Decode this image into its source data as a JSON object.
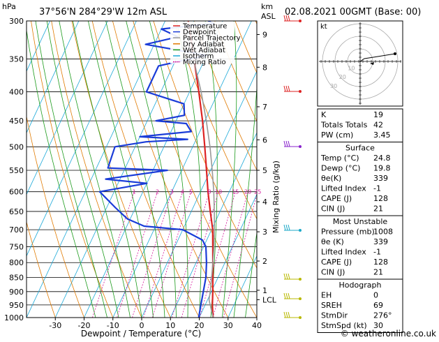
{
  "header": {
    "location": "37°56'N  284°29'W  12m  ASL",
    "datetime": "02.08.2021  00GMT  (Base: 00)"
  },
  "chart_data": {
    "type": "line",
    "title": "37°56'N  284°29'W  12m  ASL",
    "xlabel": "Dewpoint / Temperature (°C)",
    "ylabel": "hPa",
    "right_axis_label": "Mixing Ratio (g/kg)",
    "km_label": "km",
    "asl_label": "ASL",
    "pressure_ticks": [
      300,
      350,
      400,
      450,
      500,
      550,
      600,
      650,
      700,
      750,
      800,
      850,
      900,
      950,
      1000
    ],
    "temp_ticks": [
      -30,
      -20,
      -10,
      0,
      10,
      20,
      30,
      40
    ],
    "xlim": [
      -40,
      40
    ],
    "ylim": [
      1000,
      300
    ],
    "skew_deg_per_log": 40,
    "km_ticks": [
      {
        "label": "9",
        "p": 317
      },
      {
        "label": "8",
        "p": 362
      },
      {
        "label": "7",
        "p": 425
      },
      {
        "label": "6",
        "p": 486
      },
      {
        "label": "5",
        "p": 550
      },
      {
        "label": "4",
        "p": 625
      },
      {
        "label": "3",
        "p": 706
      },
      {
        "label": "2",
        "p": 795
      },
      {
        "label": "1",
        "p": 895
      },
      {
        "label": "LCL",
        "p": 930
      }
    ],
    "mixing_ratio_labels": [
      "1",
      "2",
      "3",
      "4",
      "5",
      "8",
      "10",
      "15",
      "20",
      "25"
    ],
    "mixing_ratio_values": [
      1,
      2,
      3,
      4,
      5,
      8,
      10,
      15,
      20,
      25
    ],
    "legend": [
      "Temperature",
      "Dewpoint",
      "Parcel Trajectory",
      "Dry Adiabat",
      "Wet Adiabat",
      "Isotherm",
      "Mixing Ratio"
    ],
    "series": [
      {
        "name": "Temperature",
        "color": "#dd2222",
        "points": [
          [
            1000,
            24.8
          ],
          [
            950,
            22.5
          ],
          [
            900,
            20.5
          ],
          [
            850,
            18.2
          ],
          [
            800,
            15.8
          ],
          [
            750,
            13.2
          ],
          [
            700,
            10.4
          ],
          [
            650,
            6.6
          ],
          [
            600,
            2.6
          ],
          [
            550,
            -1.4
          ],
          [
            500,
            -5.8
          ],
          [
            450,
            -10.8
          ],
          [
            400,
            -16.8
          ],
          [
            350,
            -23.8
          ],
          [
            300,
            -32
          ]
        ]
      },
      {
        "name": "Dewpoint",
        "color": "#1a3cd8",
        "points": [
          [
            1000,
            19.8
          ],
          [
            950,
            18.5
          ],
          [
            900,
            17.2
          ],
          [
            850,
            15.8
          ],
          [
            800,
            13.6
          ],
          [
            750,
            10.8
          ],
          [
            730,
            8.5
          ],
          [
            700,
            0
          ],
          [
            690,
            -14
          ],
          [
            670,
            -21
          ],
          [
            640,
            -27
          ],
          [
            600,
            -35
          ],
          [
            580,
            -20
          ],
          [
            570,
            -35
          ],
          [
            550,
            -15
          ],
          [
            545,
            -36
          ],
          [
            500,
            -37
          ],
          [
            490,
            -27
          ],
          [
            485,
            -13
          ],
          [
            480,
            -30
          ],
          [
            470,
            -13
          ],
          [
            455,
            -16
          ],
          [
            450,
            -27
          ],
          [
            440,
            -18
          ],
          [
            420,
            -20
          ],
          [
            400,
            -35
          ],
          [
            360,
            -35
          ],
          [
            345,
            -20
          ],
          [
            330,
            -43
          ],
          [
            320,
            -33
          ],
          [
            310,
            -40
          ],
          [
            303,
            -23
          ],
          [
            300,
            -25
          ]
        ]
      },
      {
        "name": "Parcel Trajectory",
        "color": "#999999",
        "points": [
          [
            1000,
            24.8
          ],
          [
            930,
            20.5
          ],
          [
            900,
            19.6
          ],
          [
            850,
            17.8
          ],
          [
            800,
            15.8
          ],
          [
            750,
            13.6
          ],
          [
            700,
            11.0
          ],
          [
            650,
            8.0
          ],
          [
            600,
            4.6
          ],
          [
            550,
            0.6
          ],
          [
            500,
            -4.0
          ],
          [
            450,
            -9.5
          ],
          [
            400,
            -16.0
          ],
          [
            350,
            -24.0
          ],
          [
            300,
            -33.5
          ]
        ]
      }
    ]
  },
  "hodograph": {
    "label": "kt",
    "ring_labels": [
      "10",
      "20",
      "30"
    ]
  },
  "indices": {
    "rows": [
      {
        "label": "K",
        "value": "19"
      },
      {
        "label": "Totals Totals",
        "value": "42"
      },
      {
        "label": "PW (cm)",
        "value": "3.45"
      }
    ]
  },
  "surface": {
    "title": "Surface",
    "rows": [
      {
        "label": "Temp (°C)",
        "value": "24.8"
      },
      {
        "label": "Dewp (°C)",
        "value": "19.8"
      },
      {
        "label": "θe(K)",
        "value": "339"
      },
      {
        "label": "Lifted Index",
        "value": "-1"
      },
      {
        "label": "CAPE (J)",
        "value": "128"
      },
      {
        "label": "CIN (J)",
        "value": "21"
      }
    ]
  },
  "most_unstable": {
    "title": "Most Unstable",
    "rows": [
      {
        "label": "Pressure (mb)",
        "value": "1008"
      },
      {
        "label": "θe (K)",
        "value": "339"
      },
      {
        "label": "Lifted Index",
        "value": "-1"
      },
      {
        "label": "CAPE (J)",
        "value": "128"
      },
      {
        "label": "CIN (J)",
        "value": "21"
      }
    ]
  },
  "hodograph_table": {
    "title": "Hodograph",
    "rows": [
      {
        "label": "EH",
        "value": "0"
      },
      {
        "label": "SREH",
        "value": "69"
      },
      {
        "label": "StmDir",
        "value": "276°"
      },
      {
        "label": "StmSpd (kt)",
        "value": "30"
      }
    ]
  },
  "footer": {
    "copyright": "© weatheronline.co.uk"
  },
  "colors": {
    "temperature": "#dd2222",
    "dewpoint": "#1a3cd8",
    "parcel": "#999999",
    "dry_adiabat": "#e07a00",
    "wet_adiabat": "#1a9a1a",
    "isotherm": "#1ca9d8",
    "mixing_ratio": "#d4149a"
  }
}
